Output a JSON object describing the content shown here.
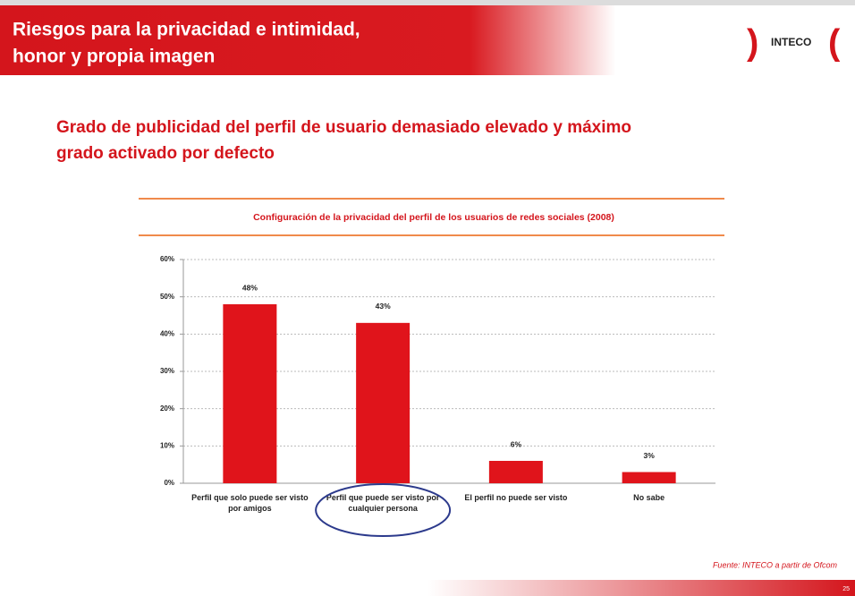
{
  "header": {
    "title_lines": [
      "Riesgos para la privacidad e intimidad,",
      "honor y propia imagen"
    ],
    "logo": "INTECO"
  },
  "subtitle_lines": [
    "Grado de publicidad del perfil de usuario demasiado elevado y máximo",
    "grado activado por defecto"
  ],
  "chart_data": {
    "type": "bar",
    "title": "Configuración de la privacidad del perfil de los usuarios de redes sociales (2008)",
    "categories": [
      "Perfil que solo puede ser visto por amigos",
      "Perfil que  puede ser visto por cualquier persona",
      "El perfil no puede ser visto",
      "No sabe"
    ],
    "values": [
      48,
      43,
      6,
      3
    ],
    "value_labels": [
      "48%",
      "43%",
      "6%",
      "3%"
    ],
    "color": "#e0141b",
    "ylim": [
      0,
      60
    ],
    "yticks": [
      {
        "value": 0,
        "label": "0%"
      },
      {
        "value": 10,
        "label": "10%"
      },
      {
        "value": 20,
        "label": "20%"
      },
      {
        "value": 30,
        "label": "30%"
      },
      {
        "value": 40,
        "label": "40%"
      },
      {
        "value": 50,
        "label": "50%"
      },
      {
        "value": 60,
        "label": "60%"
      }
    ],
    "grid": true
  },
  "source": "Fuente: INTECO a partir de Ofcom",
  "page_number": "25"
}
